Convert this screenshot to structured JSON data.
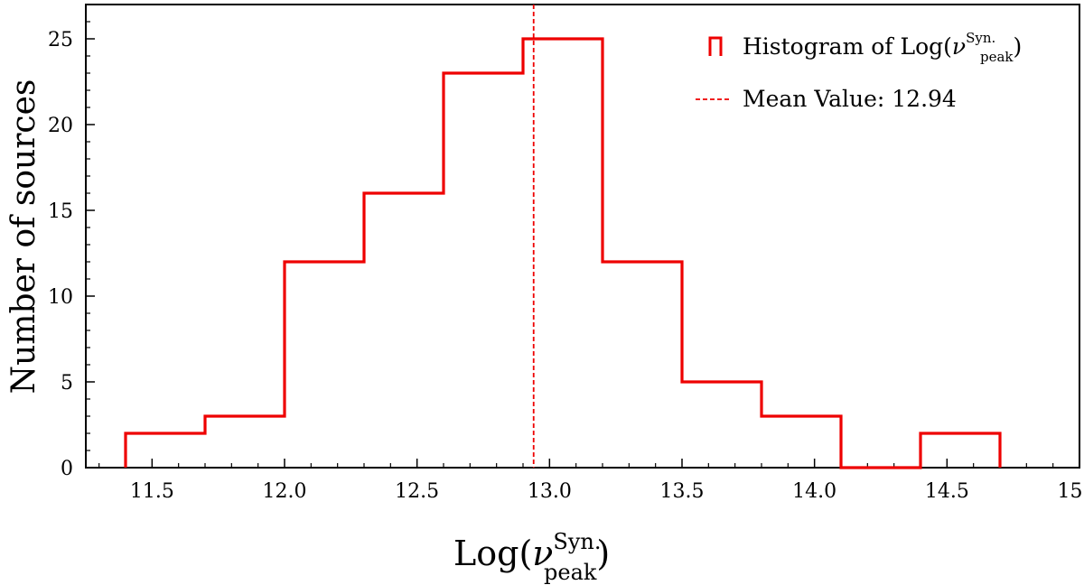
{
  "chart_data": {
    "type": "histogram",
    "xlim": [
      11.25,
      15.0
    ],
    "ylim": [
      0,
      27
    ],
    "bin_edges": [
      11.4,
      11.7,
      12.0,
      12.3,
      12.6,
      12.9,
      13.2,
      13.5,
      13.8,
      14.1,
      14.4,
      14.7
    ],
    "counts": [
      2,
      3,
      12,
      16,
      23,
      25,
      12,
      5,
      3,
      0,
      2
    ],
    "x_ticks": [
      "11.5",
      "12.0",
      "12.5",
      "13.0",
      "13.5",
      "14.0",
      "14.5",
      "15.0"
    ],
    "y_ticks": [
      "0",
      "5",
      "10",
      "15",
      "20",
      "25"
    ],
    "xlabel": {
      "base": "Log(",
      "nu": "ν",
      "sup": "Syn.",
      "sub": "peak",
      "close": ")"
    },
    "ylabel": "Number of sources",
    "mean_value": 12.94,
    "series_color": "#ee0000",
    "legend": {
      "position": "top-right",
      "hist_label": {
        "base": "Histogram of Log(",
        "nu": "ν",
        "sup": "Syn.",
        "sub": "peak",
        "close": ")"
      },
      "mean_label": "Mean Value: 12.94"
    }
  }
}
